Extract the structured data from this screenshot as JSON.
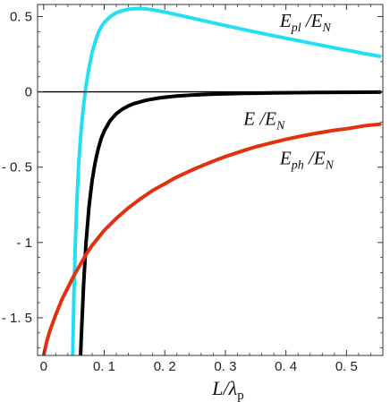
{
  "chart_data": {
    "type": "line",
    "title": "",
    "xlabel": "L/λp",
    "ylabel": "",
    "xlim": [
      -0.01,
      0.56
    ],
    "ylim": [
      -1.75,
      0.58
    ],
    "x_ticks": [
      {
        "value": 0,
        "label": "0"
      },
      {
        "value": 0.1,
        "label": "0. 1"
      },
      {
        "value": 0.2,
        "label": "0. 2"
      },
      {
        "value": 0.3,
        "label": "0. 3"
      },
      {
        "value": 0.4,
        "label": "0. 4"
      },
      {
        "value": 0.5,
        "label": "0. 5"
      }
    ],
    "y_ticks": [
      {
        "value": 0.5,
        "label": "0. 5"
      },
      {
        "value": 0,
        "label": "0"
      },
      {
        "value": -0.5,
        "label": "- 0. 5"
      },
      {
        "value": -1,
        "label": "- 1"
      },
      {
        "value": -1.5,
        "label": "- 1. 5"
      }
    ],
    "grid": false,
    "series": [
      {
        "name": "Epl /EN",
        "color": "#22e0f0",
        "x": [
          0.048,
          0.05,
          0.052,
          0.055,
          0.058,
          0.062,
          0.066,
          0.07,
          0.075,
          0.08,
          0.085,
          0.09,
          0.095,
          0.1,
          0.11,
          0.12,
          0.13,
          0.14,
          0.15,
          0.16,
          0.17,
          0.18,
          0.2,
          0.22,
          0.25,
          0.28,
          0.3,
          0.33,
          0.35,
          0.38,
          0.4,
          0.43,
          0.45,
          0.48,
          0.5,
          0.53,
          0.555
        ],
        "y": [
          -1.75,
          -1.35,
          -1.05,
          -0.72,
          -0.47,
          -0.25,
          -0.09,
          0.04,
          0.16,
          0.26,
          0.33,
          0.39,
          0.43,
          0.46,
          0.5,
          0.525,
          0.54,
          0.548,
          0.552,
          0.553,
          0.55,
          0.545,
          0.53,
          0.512,
          0.485,
          0.458,
          0.44,
          0.414,
          0.397,
          0.372,
          0.356,
          0.332,
          0.316,
          0.292,
          0.277,
          0.254,
          0.236
        ]
      },
      {
        "name": "E /EN",
        "color": "#000000",
        "x": [
          0.061,
          0.063,
          0.066,
          0.07,
          0.075,
          0.08,
          0.085,
          0.09,
          0.095,
          0.1,
          0.11,
          0.12,
          0.13,
          0.14,
          0.15,
          0.17,
          0.19,
          0.2,
          0.22,
          0.25,
          0.28,
          0.3,
          0.33,
          0.35,
          0.38,
          0.4,
          0.45,
          0.5,
          0.555
        ],
        "y": [
          -1.75,
          -1.55,
          -1.28,
          -1.0,
          -0.76,
          -0.59,
          -0.47,
          -0.38,
          -0.31,
          -0.26,
          -0.19,
          -0.145,
          -0.115,
          -0.093,
          -0.077,
          -0.055,
          -0.041,
          -0.036,
          -0.028,
          -0.02,
          -0.015,
          -0.013,
          -0.01,
          -0.009,
          -0.007,
          -0.006,
          -0.004,
          -0.003,
          -0.002
        ]
      },
      {
        "name": "Eph /EN",
        "color": "#e23010",
        "x": [
          0.0,
          0.005,
          0.01,
          0.02,
          0.03,
          0.04,
          0.05,
          0.06,
          0.07,
          0.08,
          0.09,
          0.1,
          0.12,
          0.14,
          0.16,
          0.18,
          0.2,
          0.22,
          0.25,
          0.28,
          0.3,
          0.33,
          0.35,
          0.38,
          0.4,
          0.43,
          0.45,
          0.48,
          0.5,
          0.53,
          0.555
        ],
        "y": [
          -1.75,
          -1.66,
          -1.59,
          -1.48,
          -1.38,
          -1.3,
          -1.22,
          -1.15,
          -1.08,
          -1.02,
          -0.97,
          -0.92,
          -0.84,
          -0.77,
          -0.71,
          -0.655,
          -0.61,
          -0.565,
          -0.51,
          -0.46,
          -0.43,
          -0.39,
          -0.365,
          -0.335,
          -0.315,
          -0.29,
          -0.275,
          -0.255,
          -0.245,
          -0.225,
          -0.215
        ]
      }
    ],
    "annotations": [
      {
        "series": "Epl /EN",
        "x": 0.39,
        "y": 0.43
      },
      {
        "series": "E /EN",
        "x": 0.33,
        "y": -0.22
      },
      {
        "series": "Eph /EN",
        "x": 0.39,
        "y": -0.48
      }
    ]
  }
}
